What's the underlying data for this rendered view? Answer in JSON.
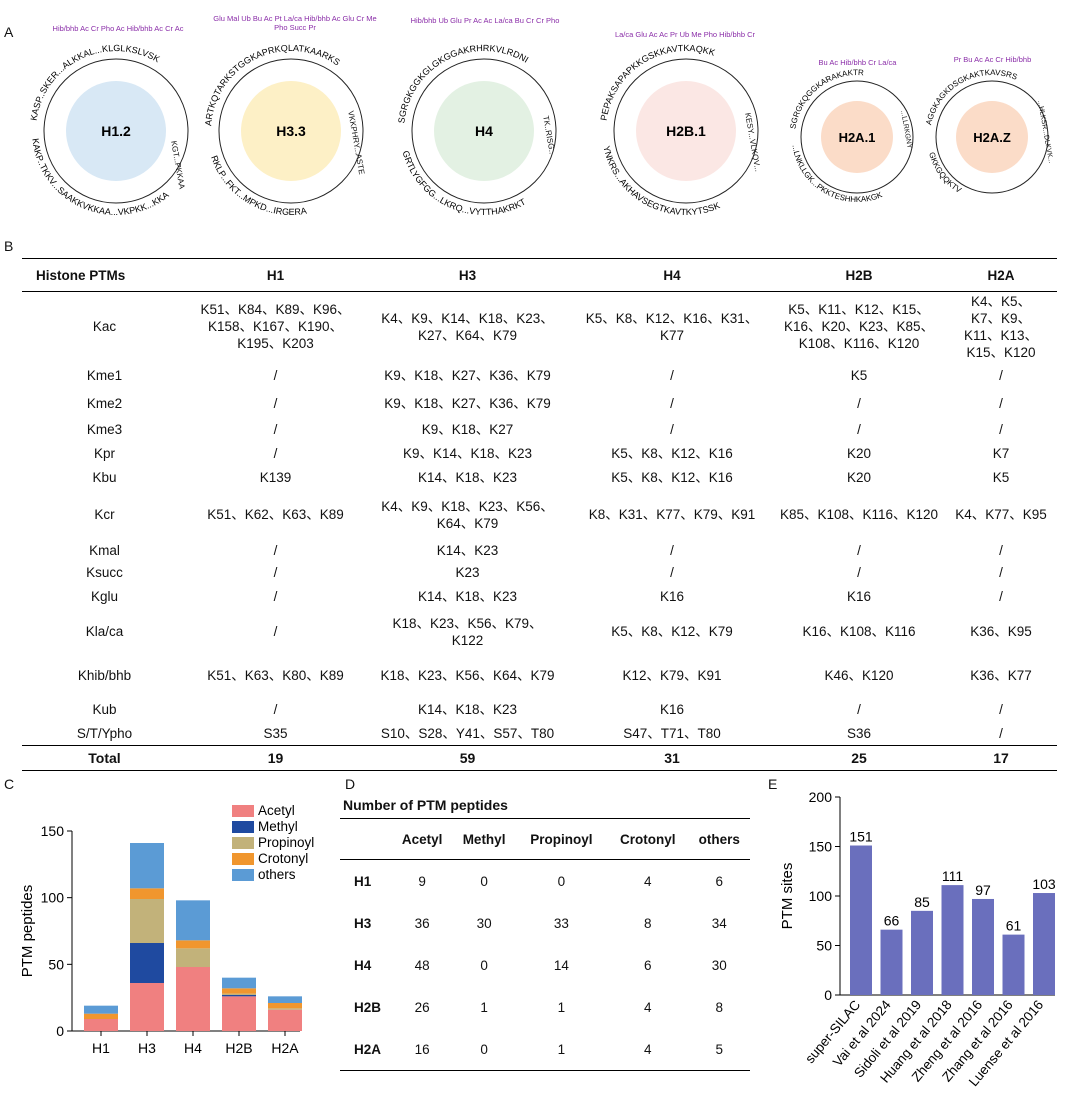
{
  "panel_labels": {
    "a": "A",
    "b": "B",
    "c": "C",
    "d": "D",
    "e": "E"
  },
  "panelA": {
    "histones": [
      {
        "name": "H1.2",
        "color": "#d8e8f5",
        "seq_top": "KASP..SKER...ALKKAL...KLGLKSLVSK",
        "seq_right": "KGT...PKKAA",
        "seq_bottom": "KAKP..TKKV...SAAKKVKKAA...VKPKK...KKA",
        "marks": "Hib/bhb Ac Cr Pho Ac Hib/bhb Ac Cr Ac"
      },
      {
        "name": "H3.3",
        "color": "#fdf0c6",
        "seq_top": "ARTKQTARKSTGGKAPRKQLATKAARKS",
        "seq_right": "VKKPHRY...ASTE",
        "seq_bottom": "RKLP...FKT...MPKD...IRGERA",
        "marks": "Glu Mal Ub Bu Ac Pt La/ca Hib/bhb Ac Glu Cr Me Pho Succ Pr"
      },
      {
        "name": "H4",
        "color": "#e3f1e3",
        "seq_top": "SGRGKGGKGLGKGGAKRHRKVLRDNI",
        "seq_right": "TK..RISG..",
        "seq_bottom": "GRTLYGFGG...LKRQ...VYTTHAKRKT",
        "marks": "Hib/bhb Ub Glu Pr Ac Ac La/ca Bu Cr Cr Pho"
      },
      {
        "name": "H2B.1",
        "color": "#fbe7e4",
        "seq_top": "PEPAKSAPAPKKGSKKAVTKAQKK",
        "seq_right": "KESY...VLKQV...",
        "seq_bottom": "YNKRS...AKHAVSEGTKAVTKYTSSK",
        "marks": "La/ca Glu Ac Ac Pr Ub Me Pho Hib/bhb Cr"
      },
      {
        "name": "H2A.1",
        "color": "#fbdcc8",
        "seq_top": "SGRGKQGGKARAKAKTR",
        "seq_right": "...LLRKGNY",
        "seq_bottom": "...LNKLLGK...PKKTESHHKAKGK",
        "marks": "Bu Ac Hib/bhb Cr La/ca"
      },
      {
        "name": "H2A.Z",
        "color": "#fbdcc8",
        "seq_top": "AGGKAGKDSGKAKTKAVSRS",
        "seq_right": "...HLKSR...DLKVK...",
        "seq_bottom": "GKKGQQKTV",
        "marks": "Pr Bu Ac Ac Cr Hib/bhb"
      }
    ]
  },
  "panelB": {
    "headers": [
      "Histone PTMs",
      "H1",
      "H3",
      "H4",
      "H2B",
      "H2A"
    ],
    "rows": [
      {
        "ptm": "Kac",
        "h1": "K51、K84、K89、K96、K158、K167、K190、K195、K203",
        "h3": "K4、K9、K14、K18、K23、K27、K64、K79",
        "h4": "K5、K8、K12、K16、K31、K77",
        "h2b": "K5、K11、K12、K15、K16、K20、K23、K85、K108、K116、K120",
        "h2a": "K4、K5、K7、K9、K11、K13、K15、K120"
      },
      {
        "ptm": "Kme1",
        "h1": "/",
        "h3": "K9、K18、K27、K36、K79",
        "h4": "/",
        "h2b": "K5",
        "h2a": "/"
      },
      {
        "ptm": "Kme2",
        "h1": "/",
        "h3": "K9、K18、K27、K36、K79",
        "h4": "/",
        "h2b": "/",
        "h2a": "/"
      },
      {
        "ptm": "Kme3",
        "h1": "/",
        "h3": "K9、K18、K27",
        "h4": "/",
        "h2b": "/",
        "h2a": "/"
      },
      {
        "ptm": "Kpr",
        "h1": "/",
        "h3": "K9、K14、K18、K23",
        "h4": "K5、K8、K12、K16",
        "h2b": "K20",
        "h2a": "K7"
      },
      {
        "ptm": "Kbu",
        "h1": "K139",
        "h3": "K14、K18、K23",
        "h4": "K5、K8、K12、K16",
        "h2b": "K20",
        "h2a": "K5"
      },
      {
        "ptm": "Kcr",
        "h1": "K51、K62、K63、K89",
        "h3": "K4、K9、K18、K23、K56、K64、K79",
        "h4": "K8、K31、K77、K79、K91",
        "h2b": "K85、K108、K116、K120",
        "h2a": "K4、K77、K95"
      },
      {
        "ptm": "Kmal",
        "h1": "/",
        "h3": "K14、K23",
        "h4": "/",
        "h2b": "/",
        "h2a": "/"
      },
      {
        "ptm": "Ksucc",
        "h1": "/",
        "h3": "K23",
        "h4": "/",
        "h2b": "/",
        "h2a": "/"
      },
      {
        "ptm": "Kglu",
        "h1": "/",
        "h3": "K14、K18、K23",
        "h4": "K16",
        "h2b": "K16",
        "h2a": "/"
      },
      {
        "ptm": "Kla/ca",
        "h1": "/",
        "h3": "K18、K23、K56、K79、K122",
        "h4": "K5、K8、K12、K79",
        "h2b": "K16、K108、K116",
        "h2a": "K36、K95"
      },
      {
        "ptm": "Khib/bhb",
        "h1": "K51、K63、K80、K89",
        "h3": "K18、K23、K56、K64、K79",
        "h4": "K12、K79、K91",
        "h2b": "K46、K120",
        "h2a": "K36、K77"
      },
      {
        "ptm": "Kub",
        "h1": "/",
        "h3": "K14、K18、K23",
        "h4": "K16",
        "h2b": "/",
        "h2a": "/"
      },
      {
        "ptm": "S/T/Ypho",
        "h1": "S35",
        "h3": "S10、S28、Y41、S57、T80",
        "h4": "S47、T71、T80",
        "h2b": "S36",
        "h2a": "/"
      }
    ],
    "total": {
      "label": "Total",
      "h1": "19",
      "h3": "59",
      "h4": "31",
      "h2b": "25",
      "h2a": "17"
    }
  },
  "panelD": {
    "title": "Number  of PTM peptides",
    "headers": [
      "",
      "Acetyl",
      "Methyl",
      "Propinoyl",
      "Crotonyl",
      "others"
    ],
    "rows": [
      {
        "label": "H1",
        "values": [
          "9",
          "0",
          "0",
          "4",
          "6"
        ]
      },
      {
        "label": "H3",
        "values": [
          "36",
          "30",
          "33",
          "8",
          "34"
        ]
      },
      {
        "label": "H4",
        "values": [
          "48",
          "0",
          "14",
          "6",
          "30"
        ]
      },
      {
        "label": "H2B",
        "values": [
          "26",
          "1",
          "1",
          "4",
          "8"
        ]
      },
      {
        "label": "H2A",
        "values": [
          "16",
          "0",
          "1",
          "4",
          "5"
        ]
      }
    ]
  },
  "chart_data": [
    {
      "type": "bar",
      "stacked": true,
      "categories": [
        "H1",
        "H3",
        "H4",
        "H2B",
        "H2A"
      ],
      "series": [
        {
          "name": "Acetyl",
          "color": "#f08080",
          "values": [
            9,
            36,
            48,
            26,
            16
          ]
        },
        {
          "name": "Methyl",
          "color": "#1f4aa0",
          "values": [
            0,
            30,
            0,
            1,
            0
          ]
        },
        {
          "name": "Propinoyl",
          "color": "#c2b27a",
          "values": [
            0,
            33,
            14,
            1,
            1
          ]
        },
        {
          "name": "Crotonyl",
          "color": "#f0962e",
          "values": [
            4,
            8,
            6,
            4,
            4
          ]
        },
        {
          "name": "others",
          "color": "#5b9bd5",
          "values": [
            6,
            34,
            30,
            8,
            5
          ]
        }
      ],
      "ylabel": "PTM peptides",
      "xlabel": "",
      "ylim": [
        0,
        150
      ],
      "yticks": [
        0,
        50,
        100,
        150
      ],
      "legend": "top-right"
    },
    {
      "type": "bar",
      "categories": [
        "super-SILAC",
        "Vai et al 2024",
        "Sidoli et al 2019",
        "Huang et al 2018",
        "Zheng et al 2016",
        "Zhang et al 2016",
        "Luense et al 2016"
      ],
      "values": [
        151,
        66,
        85,
        111,
        97,
        61,
        103
      ],
      "color": "#6a6fbd",
      "ylabel": "PTM sites",
      "xlabel": "",
      "ylim": [
        0,
        200
      ],
      "yticks": [
        0,
        50,
        100,
        150,
        200
      ]
    }
  ]
}
